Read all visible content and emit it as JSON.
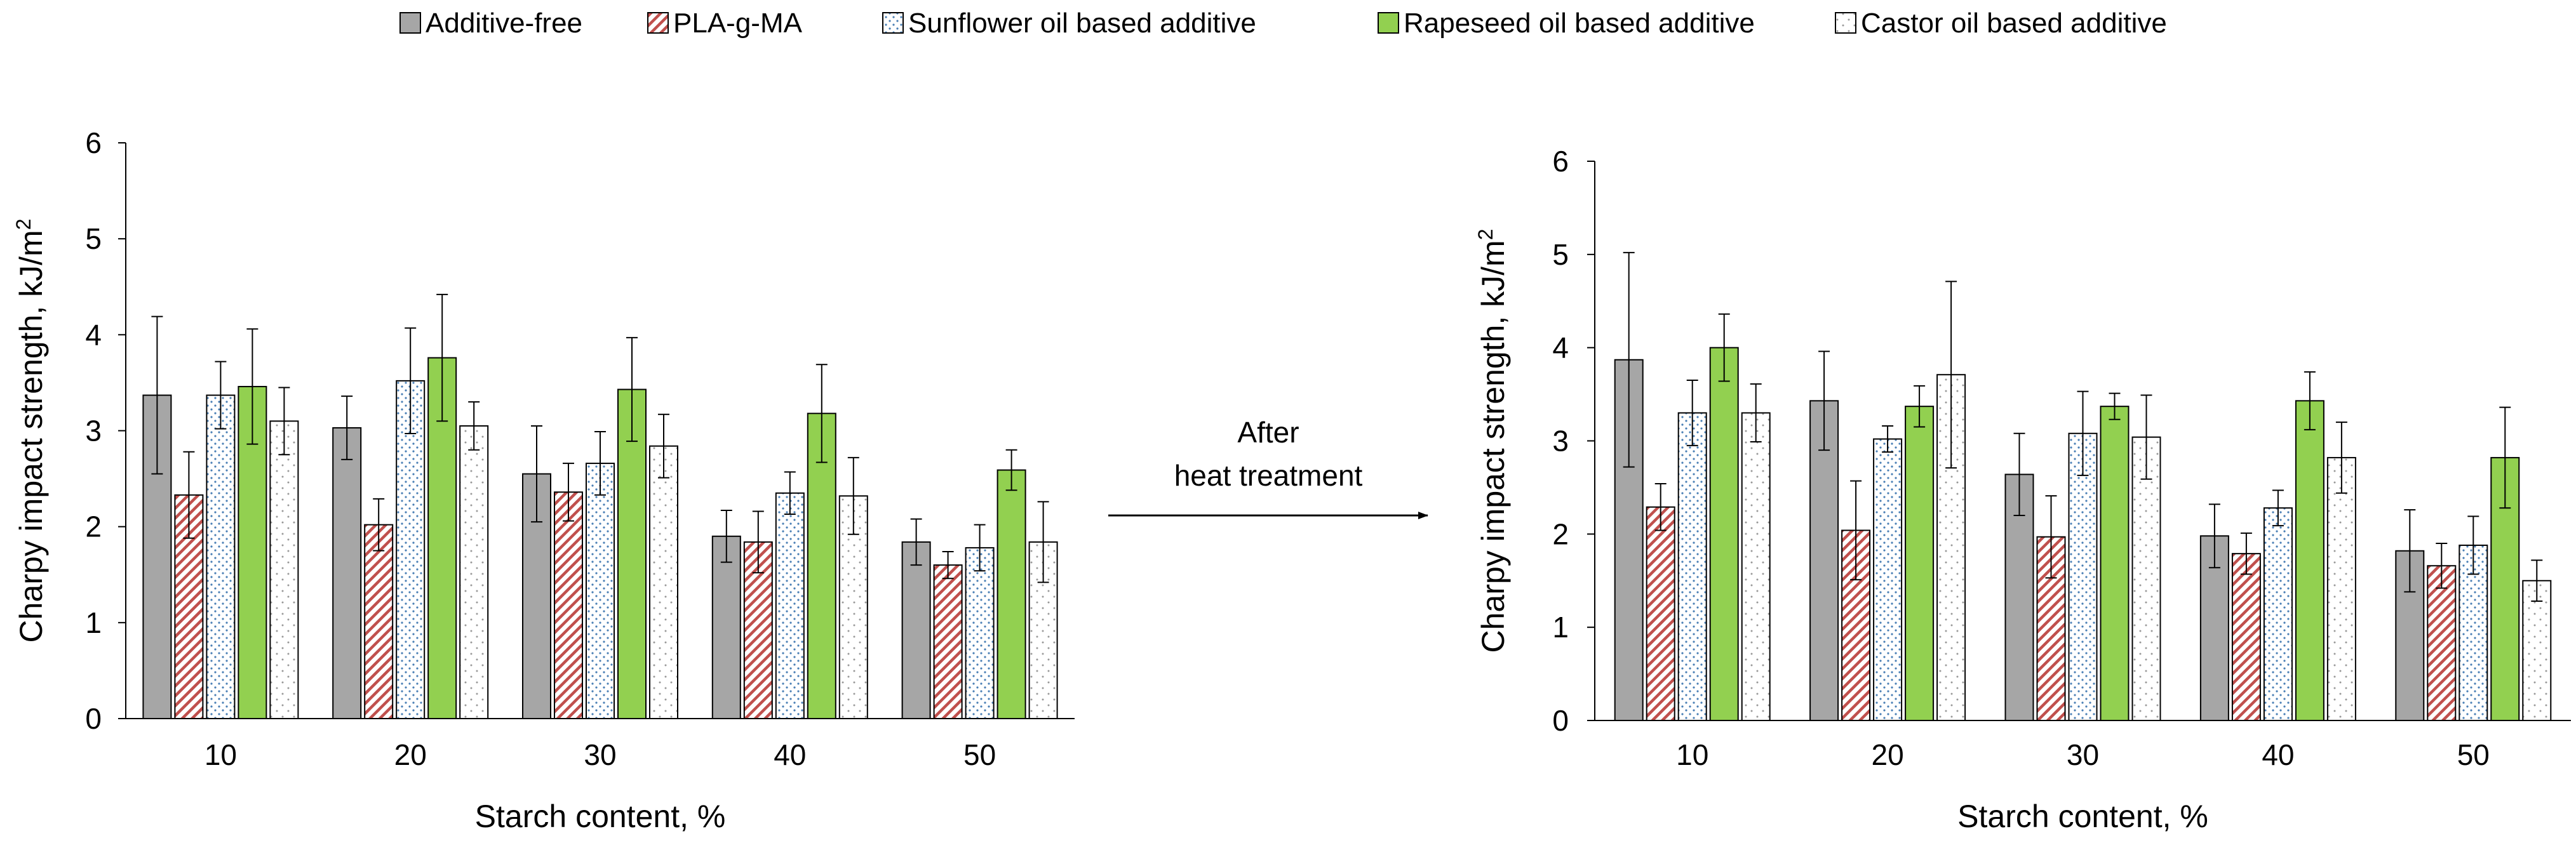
{
  "legend": [
    {
      "label": "Additive-free",
      "key": "additive_free"
    },
    {
      "label": "PLA-g-MA",
      "key": "pla_g_ma"
    },
    {
      "label": "Sunflower oil based additive",
      "key": "sunflower"
    },
    {
      "label": "Rapeseed oil based additive",
      "key": "rapeseed"
    },
    {
      "label": "Castor oil based additive",
      "key": "castor"
    }
  ],
  "colors": {
    "additive_free": "#a6a6a6",
    "pla_g_ma_hatch": "#c0504d",
    "sunflower_dots": "#4a7fb5",
    "rapeseed": "#92d050",
    "castor_dots": "#999999",
    "axis": "#000000"
  },
  "arrow": {
    "line1": "After",
    "line2": "heat treatment"
  },
  "chart_data": [
    {
      "type": "bar",
      "title": "",
      "xlabel": "Starch content, %",
      "ylabel": "Charpy impact strength, kJ/m",
      "ylabel_sup": "2",
      "ylim": [
        0,
        6
      ],
      "yticks": [
        "0",
        "1",
        "2",
        "3",
        "4",
        "5",
        "6"
      ],
      "categories": [
        "10",
        "20",
        "30",
        "40",
        "50"
      ],
      "series": [
        {
          "name": "Additive-free",
          "values": [
            3.37,
            3.03,
            2.55,
            1.9,
            1.84
          ],
          "errors": [
            0.82,
            0.33,
            0.5,
            0.27,
            0.24
          ]
        },
        {
          "name": "PLA-g-MA",
          "values": [
            2.33,
            2.02,
            2.36,
            1.84,
            1.6
          ],
          "errors": [
            0.45,
            0.27,
            0.3,
            0.32,
            0.14
          ]
        },
        {
          "name": "Sunflower oil based additive",
          "values": [
            3.37,
            3.52,
            2.66,
            2.35,
            1.78
          ],
          "errors": [
            0.35,
            0.55,
            0.33,
            0.22,
            0.24
          ]
        },
        {
          "name": "Rapeseed oil based additive",
          "values": [
            3.46,
            3.76,
            3.43,
            3.18,
            2.59
          ],
          "errors": [
            0.6,
            0.66,
            0.54,
            0.51,
            0.21
          ]
        },
        {
          "name": "Castor oil based additive",
          "values": [
            3.1,
            3.05,
            2.84,
            2.32,
            1.84
          ],
          "errors": [
            0.35,
            0.25,
            0.33,
            0.4,
            0.42
          ]
        }
      ]
    },
    {
      "type": "bar",
      "title": "",
      "xlabel": "Starch content, %",
      "ylabel": "Charpy impact strength, kJ/m",
      "ylabel_sup": "2",
      "ylim": [
        0,
        6
      ],
      "yticks": [
        "0",
        "1",
        "2",
        "3",
        "4",
        "5",
        "6"
      ],
      "categories": [
        "10",
        "20",
        "30",
        "40",
        "50"
      ],
      "series": [
        {
          "name": "Additive-free",
          "values": [
            3.87,
            3.43,
            2.64,
            1.98,
            1.82
          ],
          "errors": [
            1.15,
            0.53,
            0.44,
            0.34,
            0.44
          ]
        },
        {
          "name": "PLA-g-MA",
          "values": [
            2.29,
            2.04,
            1.97,
            1.79,
            1.66
          ],
          "errors": [
            0.25,
            0.53,
            0.44,
            0.22,
            0.24
          ]
        },
        {
          "name": "Sunflower oil based additive",
          "values": [
            3.3,
            3.02,
            3.08,
            2.28,
            1.88
          ],
          "errors": [
            0.35,
            0.14,
            0.45,
            0.19,
            0.31
          ]
        },
        {
          "name": "Rapeseed oil based additive",
          "values": [
            4.0,
            3.37,
            3.37,
            3.43,
            2.82
          ],
          "errors": [
            0.36,
            0.22,
            0.14,
            0.31,
            0.54
          ]
        },
        {
          "name": "Castor oil based additive",
          "values": [
            3.3,
            3.71,
            3.04,
            2.82,
            1.5
          ],
          "errors": [
            0.31,
            1.0,
            0.45,
            0.38,
            0.22
          ]
        }
      ]
    }
  ]
}
